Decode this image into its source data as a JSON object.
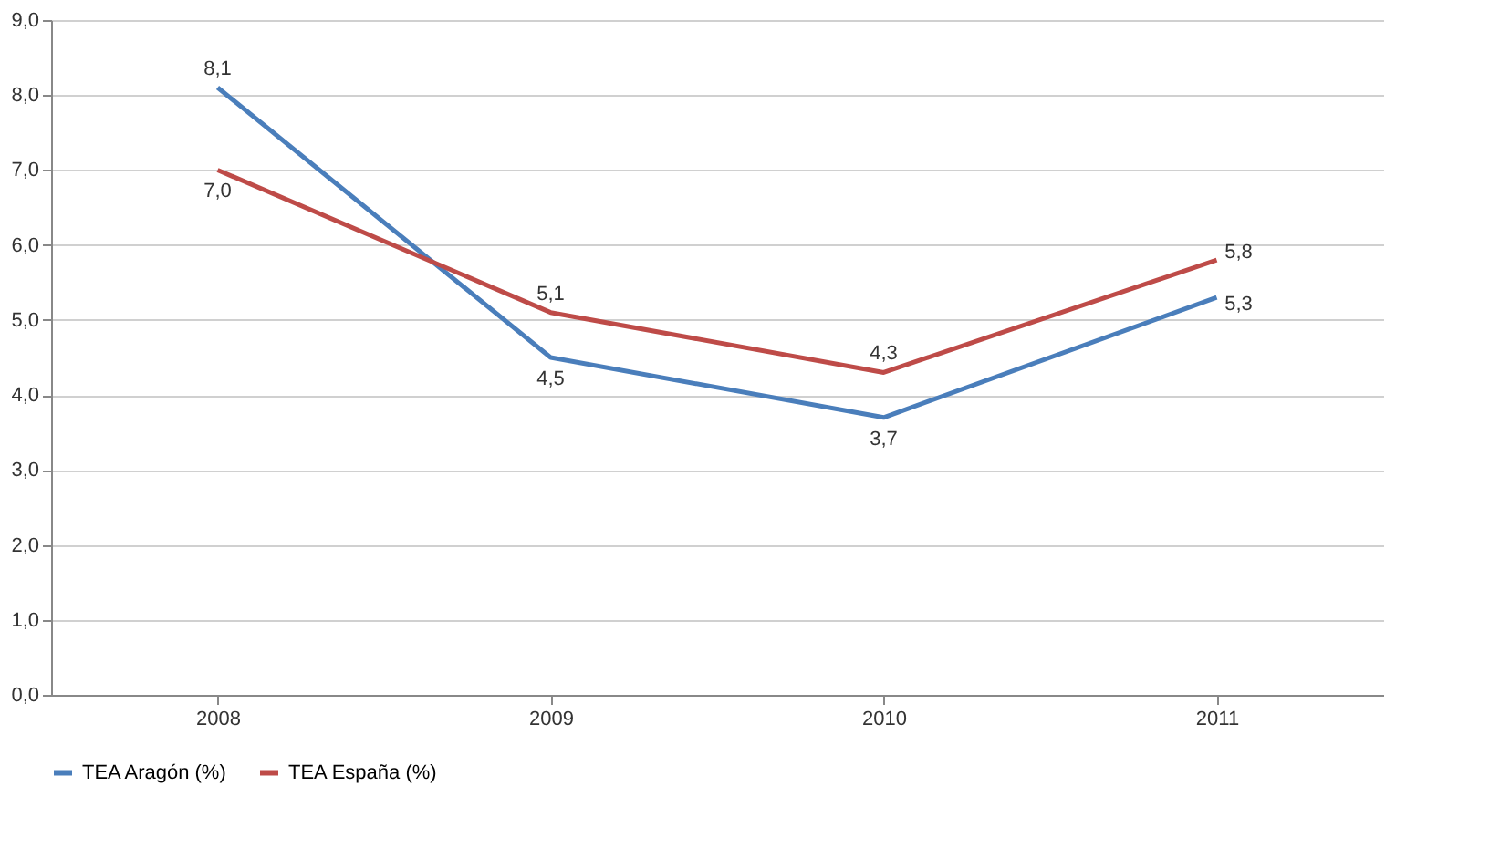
{
  "chart_data": {
    "type": "line",
    "categories": [
      "2008",
      "2009",
      "2010",
      "2011"
    ],
    "series": [
      {
        "name": "TEA Aragón (%)",
        "color": "#4a7ebb",
        "values": [
          8.1,
          4.5,
          3.7,
          5.3
        ],
        "value_labels": [
          "8,1",
          "4,5",
          "3,7",
          "5,3"
        ]
      },
      {
        "name": "TEA España (%)",
        "color": "#be4b48",
        "values": [
          7.0,
          5.1,
          4.3,
          5.8
        ],
        "value_labels": [
          "7,0",
          "5,1",
          "4,3",
          "5,8"
        ]
      }
    ],
    "ylim": [
      0,
      9
    ],
    "yticks": [
      {
        "value": 0,
        "label": "0,0"
      },
      {
        "value": 1,
        "label": "1,0"
      },
      {
        "value": 2,
        "label": "2,0"
      },
      {
        "value": 3,
        "label": "3,0"
      },
      {
        "value": 4,
        "label": "4,0"
      },
      {
        "value": 5,
        "label": "5,0"
      },
      {
        "value": 6,
        "label": "6,0"
      },
      {
        "value": 7,
        "label": "7,0"
      },
      {
        "value": 8,
        "label": "8,0"
      },
      {
        "value": 9,
        "label": "9,0"
      }
    ],
    "grid": "y",
    "legend": "bottom",
    "marker": "none",
    "line_style": "solid"
  }
}
